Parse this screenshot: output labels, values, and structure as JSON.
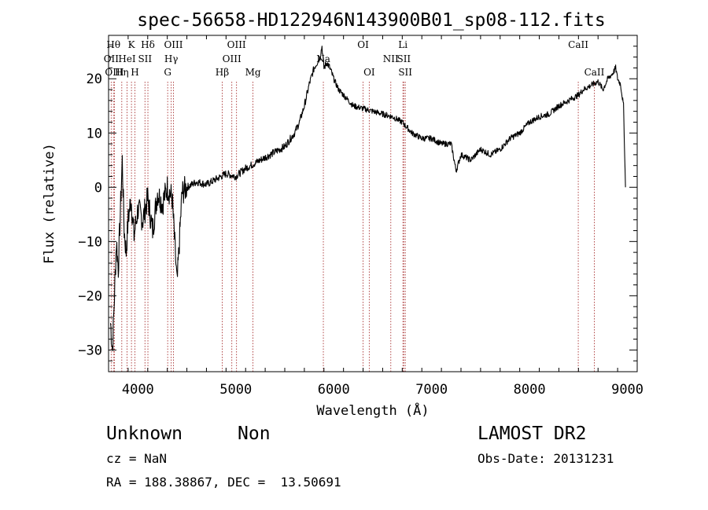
{
  "header": {
    "title": "spec-56658-HD122946N143900B01_sp08-112.fits"
  },
  "chart_data": {
    "type": "line",
    "title": "spec-56658-HD122946N143900B01_sp08-112.fits",
    "xlabel": "Wavelength (Å)",
    "ylabel": "Flux (relative)",
    "xlim": [
      3700,
      9100
    ],
    "ylim": [
      -34,
      28
    ],
    "xticks": [
      4000,
      5000,
      6000,
      7000,
      8000,
      9000
    ],
    "yticks": [
      -30,
      -20,
      -10,
      0,
      10,
      20
    ],
    "x_minor_step": 200,
    "y_minor_step": 2,
    "line_color": "#000000",
    "marker_color": "#a83232",
    "series": [
      {
        "x": [
          3720,
          3740,
          3760,
          3780,
          3800,
          3820,
          3840,
          3860,
          3880,
          3900,
          3930,
          3960,
          4000,
          4050,
          4100,
          4150,
          4200,
          4250,
          4300,
          4350,
          4400,
          4450,
          4500,
          4600,
          4700,
          4800,
          4900,
          5000,
          5100,
          5200,
          5300,
          5400,
          5500,
          5600,
          5650,
          5700,
          5750,
          5800,
          5830,
          5860,
          5880,
          5900,
          5930,
          5960,
          6000,
          6050,
          6100,
          6200,
          6300,
          6400,
          6500,
          6600,
          6700,
          6800,
          6900,
          7000,
          7100,
          7200,
          7250,
          7300,
          7400,
          7500,
          7600,
          7700,
          7800,
          7900,
          8000,
          8100,
          8200,
          8300,
          8400,
          8500,
          8550,
          8600,
          8650,
          8700,
          8750,
          8800,
          8850,
          8880,
          8900,
          8930,
          8960,
          8980
        ],
        "y": [
          -25,
          -30,
          -20,
          -10,
          -15,
          -5,
          5,
          -8,
          -12,
          -6,
          -2,
          -9,
          -4,
          -6,
          -2,
          -8,
          -1,
          -3,
          0,
          -2,
          -18,
          -1,
          0,
          1,
          0.5,
          1.5,
          2.5,
          2,
          3.5,
          4.5,
          5.5,
          6.5,
          7.5,
          10,
          12,
          15,
          19,
          22,
          23,
          24,
          26,
          22,
          23,
          22,
          20,
          18,
          17,
          15,
          14.5,
          14,
          13.5,
          13,
          12,
          10,
          9,
          9,
          8,
          8,
          3,
          6,
          5,
          7,
          6,
          7,
          9,
          10,
          12,
          13,
          13.5,
          15,
          16,
          17,
          18,
          18.5,
          19,
          19.5,
          18,
          20,
          21,
          22,
          20,
          19,
          15,
          0
        ]
      }
    ],
    "lines": [
      {
        "label": "OII",
        "x": 3727,
        "row": 2
      },
      {
        "label": "Hθ",
        "x": 3750,
        "row": 1
      },
      {
        "label": "OIII",
        "x": 3760,
        "row": 3
      },
      {
        "label": "Hη",
        "x": 3835,
        "row": 3
      },
      {
        "label": "HeI",
        "x": 3889,
        "row": 2
      },
      {
        "label": "K",
        "x": 3934,
        "row": 1
      },
      {
        "label": "H",
        "x": 3969,
        "row": 3
      },
      {
        "label": "SII",
        "x": 4072,
        "row": 2
      },
      {
        "label": "Hδ",
        "x": 4102,
        "row": 1
      },
      {
        "label": "G",
        "x": 4304,
        "row": 3
      },
      {
        "label": "Hγ",
        "x": 4340,
        "row": 2
      },
      {
        "label": "OIII",
        "x": 4363,
        "row": 1
      },
      {
        "label": "Hβ",
        "x": 4861,
        "row": 3
      },
      {
        "label": "OIII",
        "x": 4959,
        "row": 2
      },
      {
        "label": "OIII",
        "x": 5007,
        "row": 1
      },
      {
        "label": "Mg",
        "x": 5175,
        "row": 3
      },
      {
        "label": "Na",
        "x": 5894,
        "row": 2
      },
      {
        "label": "OI",
        "x": 6300,
        "row": 1
      },
      {
        "label": "OI",
        "x": 6363,
        "row": 3
      },
      {
        "label": "NII",
        "x": 6583,
        "row": 2
      },
      {
        "label": "Li",
        "x": 6707,
        "row": 1
      },
      {
        "label": "SII",
        "x": 6716,
        "row": 2
      },
      {
        "label": "SII",
        "x": 6731,
        "row": 3
      },
      {
        "label": "CaII",
        "x": 8498,
        "row": 1
      },
      {
        "label": "CaII",
        "x": 8662,
        "row": 3
      }
    ]
  },
  "info": {
    "object_class": "Unknown",
    "object_subclass": "Non",
    "survey": "LAMOST DR2",
    "redshift": "cz = NaN",
    "obs_date": "Obs-Date: 20131231",
    "coords": "RA = 188.38867, DEC =  13.50691"
  }
}
